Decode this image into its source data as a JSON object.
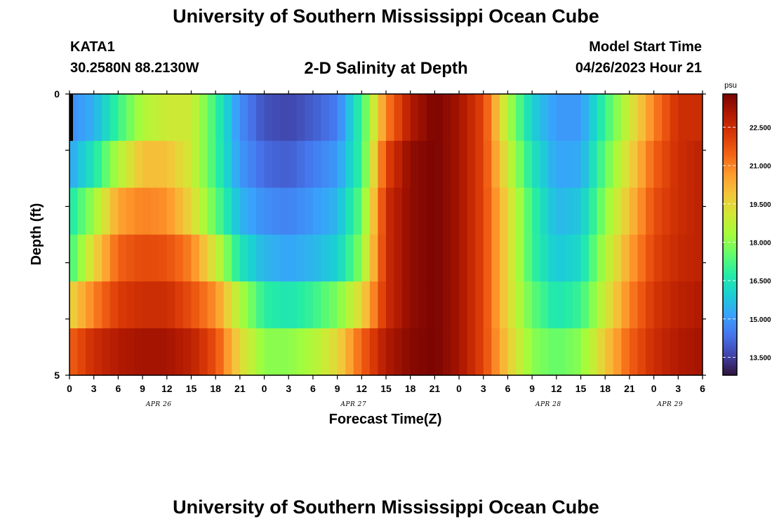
{
  "header": {
    "title": "University of Southern Mississippi Ocean Cube",
    "station": "KATA1",
    "coords": "30.2580N  88.2130W",
    "plot_title": "2-D Salinity at Depth",
    "model_start_label": "Model Start Time",
    "model_start_value": "04/26/2023 Hour 21",
    "footer_title": "University of Southern Mississippi Ocean Cube"
  },
  "chart_data": {
    "type": "heatmap",
    "title": "2-D Salinity at Depth",
    "xlabel": "Forecast Time(Z)",
    "ylabel": "Depth (ft)",
    "colorbar_unit": "psu",
    "x_tick_labels": [
      "0",
      "3",
      "6",
      "9",
      "12",
      "15",
      "18",
      "21",
      "0",
      "3",
      "6",
      "9",
      "12",
      "15",
      "18",
      "21",
      "0",
      "3",
      "6",
      "9",
      "12",
      "15",
      "18",
      "21",
      "0",
      "3",
      "6"
    ],
    "day_labels": [
      {
        "label": "APR 26",
        "at_hour": 11
      },
      {
        "label": "APR 27",
        "at_hour": 35
      },
      {
        "label": "APR 28",
        "at_hour": 59
      },
      {
        "label": "APR 29",
        "at_hour": 74
      }
    ],
    "x_range_hours": [
      0,
      78
    ],
    "y_tick_labels": [
      "0",
      "5"
    ],
    "y_range_ft": [
      0,
      5
    ],
    "depth_layers_ft": [
      0,
      1,
      2,
      3,
      4,
      5
    ],
    "colorbar_ticks": [
      "13.500",
      "15.000",
      "16.500",
      "18.000",
      "19.500",
      "21.000",
      "22.500"
    ],
    "color_range": [
      12.8,
      23.8
    ],
    "palette": [
      "#30123b",
      "#4145ab",
      "#4675ed",
      "#39a2fc",
      "#1bcfd4",
      "#24eca6",
      "#61fc6c",
      "#a4fc3b",
      "#d1e834",
      "#f3c63a",
      "#fe9b2d",
      "#f36315",
      "#d93806",
      "#b11901",
      "#7a0402"
    ],
    "keyframes_hours": [
      0,
      3,
      6,
      9,
      12,
      15,
      18,
      21,
      24,
      27,
      30,
      33,
      36,
      39,
      42,
      45,
      48,
      51,
      54,
      57,
      60,
      63,
      66,
      69,
      72,
      75,
      78
    ],
    "salinity_by_layer": [
      {
        "depth_ft": 0,
        "values": [
          14.8,
          15.4,
          17.0,
          18.5,
          19.0,
          19.0,
          17.0,
          14.8,
          13.8,
          13.6,
          14.0,
          14.5,
          17.0,
          21.0,
          23.0,
          23.8,
          23.2,
          22.0,
          18.5,
          16.0,
          15.0,
          15.0,
          17.0,
          19.0,
          21.0,
          22.5,
          22.5
        ]
      },
      {
        "depth_ft": 1,
        "values": [
          15.2,
          16.5,
          18.5,
          20.0,
          20.0,
          19.0,
          17.0,
          15.0,
          14.2,
          14.0,
          14.5,
          15.0,
          17.0,
          22.0,
          23.5,
          23.8,
          23.2,
          22.0,
          19.0,
          16.5,
          15.2,
          15.3,
          17.5,
          19.5,
          21.5,
          22.5,
          22.8
        ]
      },
      {
        "depth_ft": 2,
        "values": [
          16.5,
          18.2,
          20.5,
          21.0,
          20.8,
          19.5,
          17.5,
          15.5,
          14.8,
          14.6,
          15.0,
          15.5,
          17.5,
          22.5,
          23.5,
          23.8,
          23.2,
          22.0,
          19.5,
          17.0,
          15.5,
          15.8,
          18.0,
          20.0,
          21.8,
          22.5,
          22.8
        ]
      },
      {
        "depth_ft": 3,
        "values": [
          17.0,
          19.5,
          21.5,
          21.9,
          21.8,
          21.0,
          19.0,
          16.5,
          15.5,
          15.2,
          15.5,
          16.0,
          18.0,
          22.5,
          23.5,
          23.8,
          23.2,
          22.0,
          19.5,
          17.0,
          15.8,
          16.2,
          18.5,
          20.5,
          22.0,
          22.6,
          22.8
        ]
      },
      {
        "depth_ft": 4,
        "values": [
          19.5,
          21.0,
          22.2,
          22.5,
          22.5,
          21.8,
          20.8,
          18.5,
          16.8,
          16.5,
          17.0,
          17.8,
          19.5,
          22.5,
          23.5,
          23.8,
          23.2,
          22.0,
          19.5,
          17.5,
          16.5,
          17.0,
          19.0,
          21.0,
          22.3,
          22.8,
          23.0
        ]
      },
      {
        "depth_ft": 5,
        "values": [
          21.5,
          22.5,
          23.0,
          23.2,
          23.2,
          22.8,
          21.8,
          19.5,
          18.0,
          18.0,
          18.5,
          19.5,
          21.5,
          23.0,
          23.6,
          23.8,
          23.2,
          22.0,
          19.8,
          18.0,
          17.5,
          18.0,
          19.8,
          21.5,
          22.5,
          23.0,
          23.2
        ]
      }
    ]
  }
}
